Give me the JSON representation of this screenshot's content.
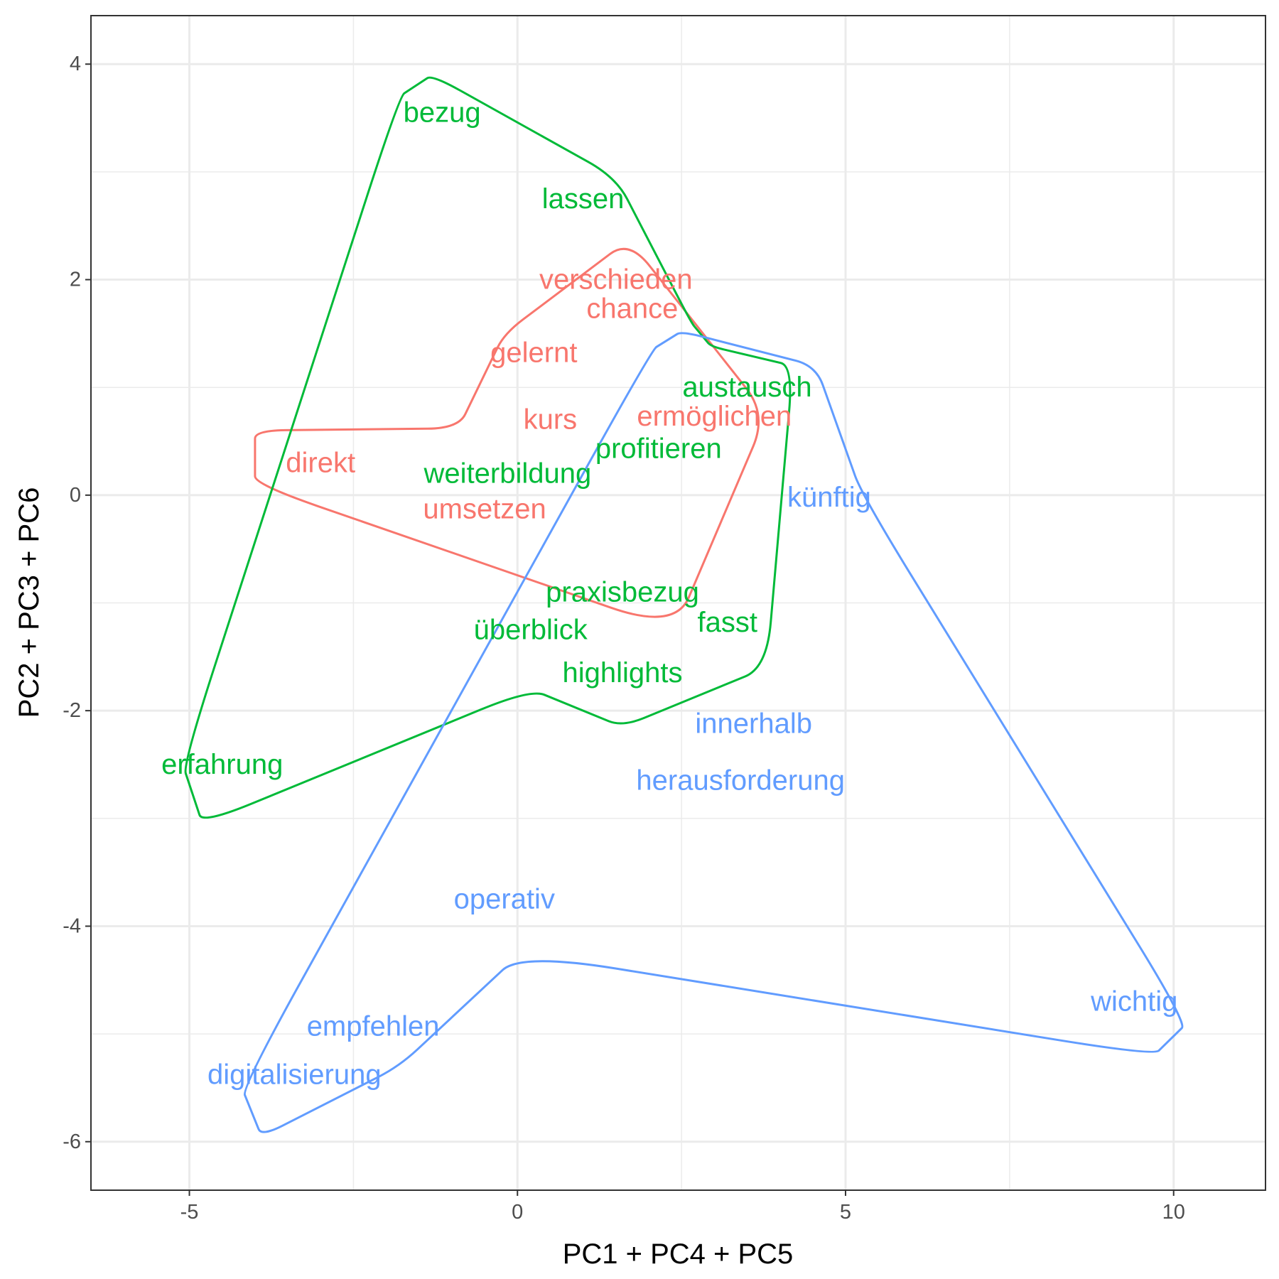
{
  "chart_data": {
    "type": "scatter",
    "title": "",
    "xlabel": "PC1 + PC4 + PC5",
    "ylabel": "PC2 + PC3 + PC6",
    "xlim": [
      -6.5,
      11.4
    ],
    "ylim": [
      -6.45,
      4.45
    ],
    "x_ticks": [
      -5,
      0,
      5,
      10
    ],
    "y_ticks": [
      -6,
      -4,
      -2,
      0,
      2,
      4
    ],
    "x_tick_labels": [
      "-5",
      "0",
      "5",
      "10"
    ],
    "y_tick_labels": [
      "-6",
      "-4",
      "-2",
      "0",
      "2",
      "4"
    ],
    "grid": true,
    "legend": "none",
    "series": [
      {
        "color": "#F8766D",
        "points": [
          {
            "label": "verschieden",
            "x": 1.5,
            "y": 2.0
          },
          {
            "label": "chance",
            "x": 1.75,
            "y": 1.73
          },
          {
            "label": "gelernt",
            "x": 0.25,
            "y": 1.32
          },
          {
            "label": "kurs",
            "x": 0.5,
            "y": 0.7
          },
          {
            "label": "ermöglichen",
            "x": 3.0,
            "y": 0.73
          },
          {
            "label": "direkt",
            "x": -3.0,
            "y": 0.3
          },
          {
            "label": "umsetzen",
            "x": -0.5,
            "y": -0.13
          }
        ],
        "hull": [
          [
            1.7,
            2.37
          ],
          [
            3.8,
            0.75
          ],
          [
            2.4,
            -1.25
          ],
          [
            -4.0,
            0.1
          ],
          [
            -4.0,
            0.6
          ],
          [
            -0.9,
            0.62
          ],
          [
            -0.2,
            1.5
          ]
        ]
      },
      {
        "color": "#00BA38",
        "points": [
          {
            "label": "bezug",
            "x": -1.15,
            "y": 3.55
          },
          {
            "label": "lassen",
            "x": 1.0,
            "y": 2.75
          },
          {
            "label": "austausch",
            "x": 3.5,
            "y": 1.0
          },
          {
            "label": "profitieren",
            "x": 2.15,
            "y": 0.43
          },
          {
            "label": "weiterbildung",
            "x": -0.15,
            "y": 0.2
          },
          {
            "label": "praxisbezug",
            "x": 1.6,
            "y": -0.9
          },
          {
            "label": "fasst",
            "x": 3.2,
            "y": -1.18
          },
          {
            "label": "überblick",
            "x": 0.2,
            "y": -1.25
          },
          {
            "label": "highlights",
            "x": 1.6,
            "y": -1.65
          },
          {
            "label": "erfahrung",
            "x": -4.5,
            "y": -2.5
          }
        ],
        "hull": [
          [
            -1.3,
            3.9
          ],
          [
            1.5,
            2.95
          ],
          [
            2.65,
            1.6
          ],
          [
            2.95,
            1.38
          ],
          [
            4.2,
            1.2
          ],
          [
            3.8,
            -1.6
          ],
          [
            1.6,
            -2.15
          ],
          [
            0.2,
            -1.8
          ],
          [
            -4.8,
            -3.05
          ],
          [
            -5.1,
            -2.5
          ],
          [
            -1.8,
            3.7
          ]
        ]
      },
      {
        "color": "#619CFF",
        "points": [
          {
            "label": "künftig",
            "x": 4.75,
            "y": -0.02
          },
          {
            "label": "innerhalb",
            "x": 3.6,
            "y": -2.12
          },
          {
            "label": "herausforderung",
            "x": 3.4,
            "y": -2.65
          },
          {
            "label": "operativ",
            "x": -0.2,
            "y": -3.75
          },
          {
            "label": "wichtig",
            "x": 9.4,
            "y": -4.7
          },
          {
            "label": "empfehlen",
            "x": -2.2,
            "y": -4.93
          },
          {
            "label": "digitalisierung",
            "x": -3.4,
            "y": -5.38
          }
        ],
        "hull": [
          [
            2.5,
            1.52
          ],
          [
            4.55,
            1.2
          ],
          [
            5.25,
            0.0
          ],
          [
            10.2,
            -4.9
          ],
          [
            9.7,
            -5.2
          ],
          [
            0.05,
            -4.25
          ],
          [
            -1.8,
            -5.3
          ],
          [
            -3.9,
            -5.95
          ],
          [
            -4.2,
            -5.5
          ],
          [
            2.05,
            1.35
          ]
        ]
      }
    ]
  }
}
